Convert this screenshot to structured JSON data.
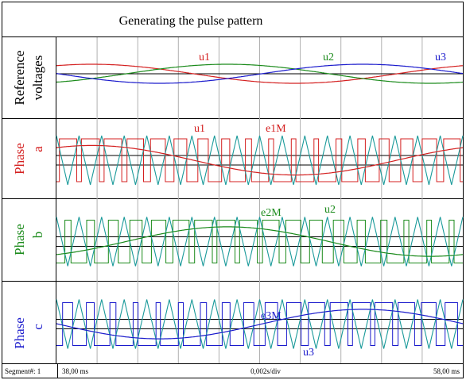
{
  "title": "Generating the pulse pattern",
  "colors": {
    "phase_a": "#d42020",
    "phase_b": "#1a8a1a",
    "phase_c": "#1a1acc",
    "carrier": "#1a9a9a",
    "grid": "#b0b0b0",
    "frame": "#000000"
  },
  "panels": [
    {
      "id": "reference",
      "label_line1": "Reference",
      "label_line2": "voltages",
      "label_color": "#000000",
      "annotations": [
        "u1",
        "u2",
        "u3"
      ]
    },
    {
      "id": "phase_a",
      "label_line1": "Phase",
      "label_line2": "a",
      "label_color": "#d42020",
      "annotations": [
        "u1",
        "e1M"
      ]
    },
    {
      "id": "phase_b",
      "label_line1": "Phase",
      "label_line2": "b",
      "label_color": "#1a8a1a",
      "annotations": [
        "e2M",
        "u2"
      ]
    },
    {
      "id": "phase_c",
      "label_line1": "Phase",
      "label_line2": "c",
      "label_color": "#1a1acc",
      "annotations": [
        "e3M",
        "u3"
      ]
    }
  ],
  "status": {
    "segment": "Segment#: 1",
    "start": "38,00 ms",
    "scale": "0,002s/div",
    "end": "58,00 ms"
  },
  "waveform": {
    "carrier_cycles": 18,
    "reference_periods": 1,
    "modulation_amplitude": 0.6
  }
}
